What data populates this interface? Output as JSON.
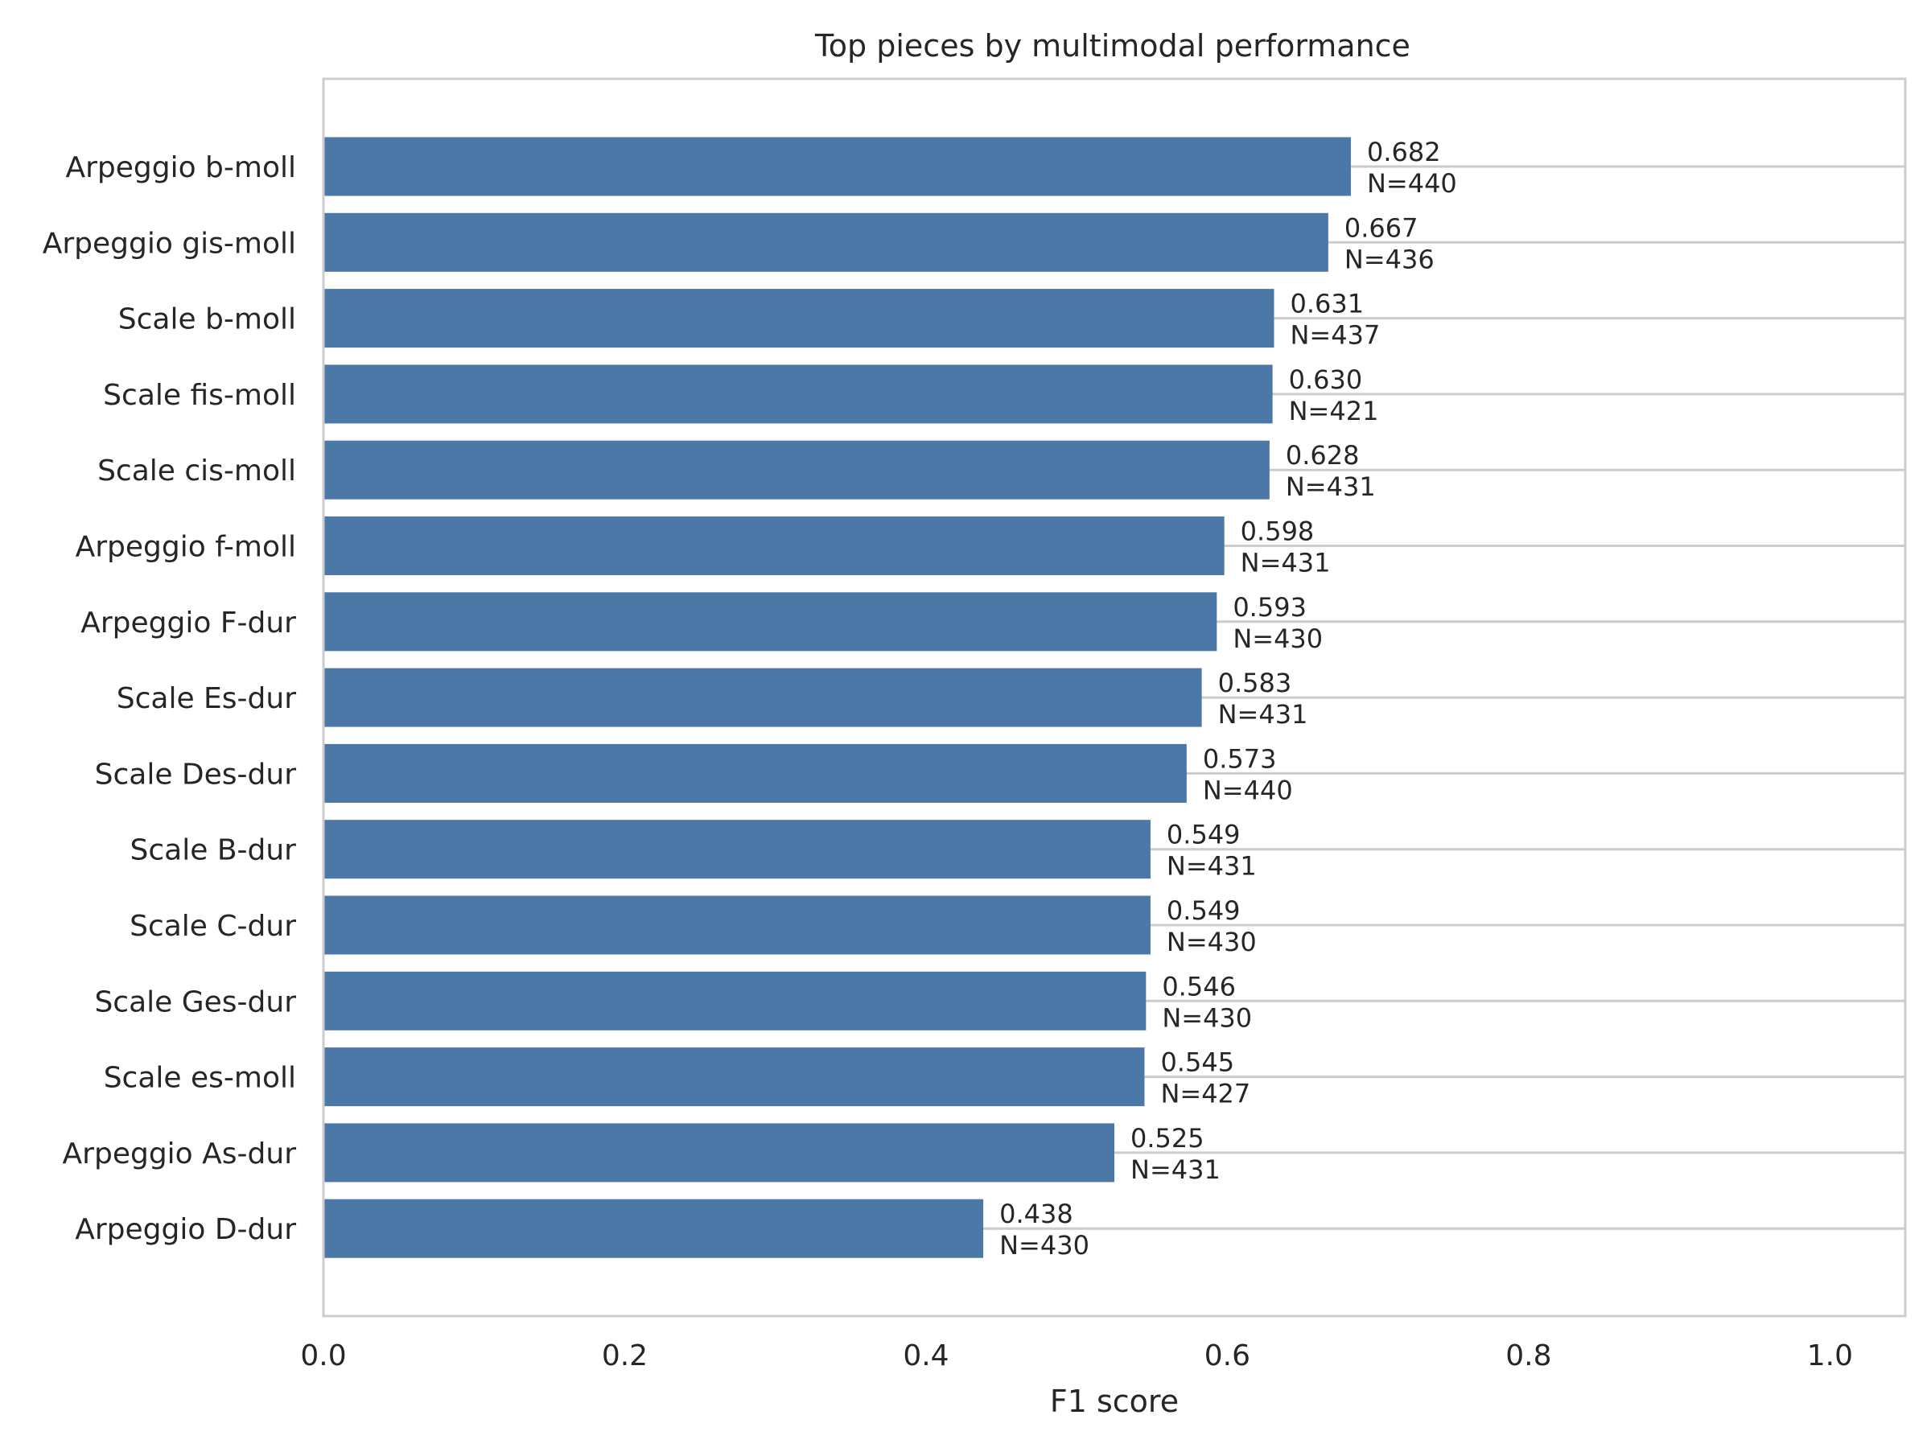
{
  "chart_data": {
    "type": "bar",
    "orientation": "horizontal",
    "title": "Top pieces by multimodal performance",
    "xlabel": "F1 score",
    "ylabel": "",
    "xlim": [
      0.0,
      1.05
    ],
    "xticks": [
      "0.0",
      "0.2",
      "0.4",
      "0.6",
      "0.8",
      "1.0"
    ],
    "grid": "horizontal lines at each category",
    "legend": "none",
    "bar_color": "#4c78a8",
    "categories": [
      "Arpeggio b-moll",
      "Arpeggio gis-moll",
      "Scale b-moll",
      "Scale fis-moll",
      "Scale cis-moll",
      "Arpeggio f-moll",
      "Arpeggio F-dur",
      "Scale Es-dur",
      "Scale Des-dur",
      "Scale B-dur",
      "Scale C-dur",
      "Scale Ges-dur",
      "Scale es-moll",
      "Arpeggio As-dur",
      "Arpeggio D-dur"
    ],
    "values": [
      0.682,
      0.667,
      0.631,
      0.63,
      0.628,
      0.598,
      0.593,
      0.583,
      0.573,
      0.549,
      0.549,
      0.546,
      0.545,
      0.525,
      0.438
    ],
    "value_labels": [
      "0.682",
      "0.667",
      "0.631",
      "0.630",
      "0.628",
      "0.598",
      "0.593",
      "0.583",
      "0.573",
      "0.549",
      "0.549",
      "0.546",
      "0.545",
      "0.525",
      "0.438"
    ],
    "n_labels": [
      "N=440",
      "N=436",
      "N=437",
      "N=421",
      "N=431",
      "N=431",
      "N=430",
      "N=431",
      "N=440",
      "N=431",
      "N=430",
      "N=430",
      "N=427",
      "N=431",
      "N=430"
    ]
  }
}
